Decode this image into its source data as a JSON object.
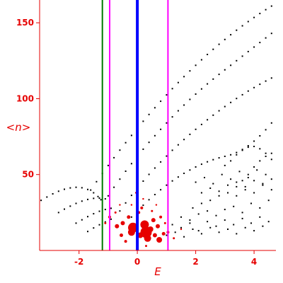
{
  "chart_data": {
    "type": "scatter",
    "xlabel": "E",
    "ylabel": "<n>",
    "xlim": [
      -3.35,
      4.75
    ],
    "ylim": [
      0,
      165
    ],
    "x_ticks": [
      -2,
      0,
      2,
      4
    ],
    "y_ticks": [
      50,
      100,
      150
    ],
    "x_tick_labels": [
      "-2",
      "0",
      "2",
      "4"
    ],
    "y_tick_labels": [
      "50",
      "100",
      "150"
    ],
    "colors": {
      "axes": "#e60000",
      "points": "#000000",
      "highlight": "#e60000",
      "green_line": "#007a00",
      "magenta_line": "#ff00ff",
      "blue_line": "#0000ff"
    },
    "vertical_lines": [
      {
        "x": -1.2,
        "color": "#007a00"
      },
      {
        "x": -0.95,
        "color": "#ff00ff"
      },
      {
        "x": 0.0,
        "color": "#0000ff"
      },
      {
        "x": 1.05,
        "color": "#ff00ff"
      }
    ],
    "series": [
      {
        "values": [
          [
            -3.3,
            33.0
          ],
          [
            -3.1,
            35.2
          ],
          [
            -2.9,
            37.3
          ],
          [
            -2.7,
            39.0
          ],
          [
            -2.5,
            40.3
          ],
          [
            -2.3,
            41.2
          ],
          [
            -2.1,
            41.6
          ],
          [
            -1.9,
            41.3
          ],
          [
            -1.7,
            40.2
          ],
          [
            -1.5,
            38.0
          ],
          [
            -1.35,
            35.5
          ],
          [
            -1.25,
            33.4
          ],
          [
            -2.7,
            25.0
          ],
          [
            -2.5,
            27.2
          ],
          [
            -2.3,
            29.2
          ],
          [
            -2.1,
            31.0
          ],
          [
            -1.9,
            32.5
          ],
          [
            -1.7,
            33.6
          ],
          [
            -1.5,
            34.3
          ],
          [
            -1.3,
            34.5
          ],
          [
            -1.1,
            34.0
          ],
          [
            -2.1,
            18.0
          ],
          [
            -1.9,
            20.2
          ],
          [
            -1.7,
            22.3
          ],
          [
            -1.5,
            24.2
          ],
          [
            -1.3,
            25.8
          ],
          [
            -1.1,
            27.0
          ],
          [
            -0.9,
            27.8
          ],
          [
            -1.7,
            12.5
          ],
          [
            -1.5,
            14.8
          ],
          [
            -1.3,
            16.9
          ],
          [
            -1.1,
            18.8
          ],
          [
            -0.9,
            20.6
          ],
          [
            -1.6,
            39.8
          ],
          [
            -1.4,
            45.3
          ],
          [
            -1.2,
            50.7
          ],
          [
            -1.0,
            56.0
          ],
          [
            -0.8,
            61.1
          ],
          [
            -0.6,
            66.1
          ],
          [
            -0.4,
            71.0
          ],
          [
            -0.2,
            75.8
          ],
          [
            0.0,
            80.5
          ],
          [
            0.2,
            85.1
          ],
          [
            0.4,
            89.6
          ],
          [
            0.6,
            94.0
          ],
          [
            0.8,
            98.3
          ],
          [
            1.0,
            102.5
          ],
          [
            1.2,
            106.6
          ],
          [
            1.4,
            110.6
          ],
          [
            1.6,
            114.5
          ],
          [
            1.8,
            118.3
          ],
          [
            2.0,
            122.0
          ],
          [
            2.2,
            125.6
          ],
          [
            2.4,
            129.1
          ],
          [
            2.6,
            132.5
          ],
          [
            2.8,
            135.8
          ],
          [
            3.0,
            139.0
          ],
          [
            3.2,
            142.1
          ],
          [
            3.4,
            145.1
          ],
          [
            3.6,
            148.0
          ],
          [
            3.8,
            150.8
          ],
          [
            4.0,
            153.5
          ],
          [
            4.2,
            156.1
          ],
          [
            4.4,
            158.6
          ],
          [
            4.6,
            161.0
          ],
          [
            -1.0,
            36.0
          ],
          [
            -0.8,
            41.6
          ],
          [
            -0.6,
            47.0
          ],
          [
            -0.4,
            52.2
          ],
          [
            -0.2,
            57.2
          ],
          [
            0.0,
            62.0
          ],
          [
            0.2,
            66.7
          ],
          [
            0.4,
            71.2
          ],
          [
            0.6,
            75.6
          ],
          [
            0.8,
            79.8
          ],
          [
            1.0,
            84.0
          ],
          [
            1.2,
            88.0
          ],
          [
            1.4,
            92.0
          ],
          [
            1.6,
            95.8
          ],
          [
            1.8,
            99.5
          ],
          [
            2.0,
            103.0
          ],
          [
            2.2,
            106.4
          ],
          [
            2.4,
            109.7
          ],
          [
            2.6,
            112.9
          ],
          [
            2.8,
            116.0
          ],
          [
            3.0,
            119.0
          ],
          [
            3.2,
            122.0
          ],
          [
            3.4,
            125.0
          ],
          [
            3.6,
            128.0
          ],
          [
            3.8,
            131.0
          ],
          [
            4.0,
            134.0
          ],
          [
            4.2,
            137.0
          ],
          [
            4.4,
            140.0
          ],
          [
            4.6,
            143.0
          ],
          [
            -0.6,
            26.0
          ],
          [
            -0.4,
            31.3
          ],
          [
            -0.2,
            36.3
          ],
          [
            0.0,
            41.1
          ],
          [
            0.2,
            45.7
          ],
          [
            0.4,
            50.1
          ],
          [
            0.6,
            54.3
          ],
          [
            0.8,
            58.3
          ],
          [
            1.0,
            62.2
          ],
          [
            1.2,
            66.0
          ],
          [
            1.4,
            69.6
          ],
          [
            1.6,
            73.1
          ],
          [
            1.8,
            76.5
          ],
          [
            2.0,
            79.8
          ],
          [
            2.2,
            83.0
          ],
          [
            2.4,
            86.1
          ],
          [
            2.6,
            89.1
          ],
          [
            2.8,
            92.0
          ],
          [
            3.0,
            94.8
          ],
          [
            3.2,
            97.5
          ],
          [
            3.4,
            100.1
          ],
          [
            3.6,
            102.6
          ],
          [
            3.8,
            105.0
          ],
          [
            4.0,
            107.3
          ],
          [
            4.2,
            109.5
          ],
          [
            4.4,
            111.6
          ],
          [
            4.6,
            113.6
          ],
          [
            -0.2,
            22.0
          ],
          [
            0.0,
            26.0
          ],
          [
            0.2,
            29.8
          ],
          [
            0.4,
            33.4
          ],
          [
            0.6,
            36.8
          ],
          [
            0.8,
            40.0
          ],
          [
            1.0,
            43.0
          ],
          [
            1.2,
            45.8
          ],
          [
            1.4,
            48.4
          ],
          [
            1.6,
            50.8
          ],
          [
            1.8,
            53.0
          ],
          [
            2.0,
            55.0
          ],
          [
            2.2,
            56.8
          ],
          [
            2.4,
            58.4
          ],
          [
            2.6,
            59.8
          ],
          [
            2.8,
            61.0
          ],
          [
            3.0,
            62.0
          ],
          [
            3.2,
            63.0
          ],
          [
            3.4,
            64.5
          ],
          [
            3.6,
            66.5
          ],
          [
            3.8,
            69.0
          ],
          [
            4.0,
            72.0
          ],
          [
            4.2,
            75.5
          ],
          [
            4.4,
            79.5
          ],
          [
            4.6,
            84.0
          ],
          [
            3.0,
            56.0
          ],
          [
            3.2,
            59.0
          ],
          [
            3.4,
            63.0
          ],
          [
            3.6,
            66.0
          ],
          [
            3.8,
            68.0
          ],
          [
            4.0,
            68.5
          ],
          [
            4.2,
            67.0
          ],
          [
            4.4,
            64.0
          ],
          [
            4.6,
            60.0
          ],
          [
            3.4,
            42.0
          ],
          [
            3.6,
            46.0
          ],
          [
            3.8,
            50.0
          ],
          [
            4.0,
            55.0
          ],
          [
            4.2,
            59.0
          ],
          [
            4.4,
            62.0
          ],
          [
            4.6,
            64.0
          ],
          [
            1.9,
            28.0
          ],
          [
            2.2,
            31.0
          ],
          [
            2.5,
            33.0
          ],
          [
            2.8,
            36.0
          ],
          [
            3.1,
            38.0
          ],
          [
            3.4,
            36.0
          ],
          [
            3.7,
            40.0
          ],
          [
            4.0,
            38.0
          ],
          [
            4.3,
            43.0
          ],
          [
            4.6,
            40.0
          ],
          [
            1.5,
            22.0
          ],
          [
            1.8,
            20.0
          ],
          [
            2.1,
            24.0
          ],
          [
            2.4,
            26.0
          ],
          [
            2.7,
            23.0
          ],
          [
            3.0,
            27.0
          ],
          [
            3.3,
            29.0
          ],
          [
            3.6,
            25.0
          ],
          [
            3.9,
            31.0
          ],
          [
            4.2,
            28.0
          ],
          [
            4.5,
            33.0
          ],
          [
            1.2,
            17.0
          ],
          [
            1.5,
            15.0
          ],
          [
            1.8,
            18.0
          ],
          [
            2.1,
            13.0
          ],
          [
            2.4,
            19.0
          ],
          [
            2.7,
            16.0
          ],
          [
            3.0,
            20.0
          ],
          [
            3.3,
            17.0
          ],
          [
            3.6,
            21.0
          ],
          [
            3.9,
            18.0
          ],
          [
            4.2,
            22.0
          ],
          [
            4.5,
            19.0
          ],
          [
            1.0,
            10.0
          ],
          [
            1.3,
            12.0
          ],
          [
            1.6,
            9.0
          ],
          [
            1.9,
            14.0
          ],
          [
            2.2,
            11.0
          ],
          [
            2.5,
            15.0
          ],
          [
            2.8,
            12.0
          ],
          [
            3.1,
            14.0
          ],
          [
            3.4,
            11.0
          ],
          [
            3.7,
            15.0
          ],
          [
            4.0,
            13.0
          ],
          [
            4.3,
            16.0
          ],
          [
            2.0,
            45.0
          ],
          [
            2.3,
            48.0
          ],
          [
            2.6,
            44.0
          ],
          [
            2.9,
            50.0
          ],
          [
            3.2,
            47.0
          ],
          [
            3.5,
            52.0
          ],
          [
            3.8,
            48.0
          ],
          [
            4.1,
            53.0
          ],
          [
            4.4,
            50.0
          ],
          [
            2.2,
            38.0
          ],
          [
            2.5,
            41.0
          ],
          [
            2.8,
            39.0
          ],
          [
            3.1,
            43.0
          ],
          [
            3.4,
            45.0
          ],
          [
            3.7,
            42.0
          ],
          [
            4.0,
            46.0
          ],
          [
            4.3,
            44.0
          ],
          [
            4.6,
            47.0
          ]
        ]
      },
      {
        "values": [
          [
            -0.15,
            15.0,
            7
          ],
          [
            0.3,
            12.0,
            8
          ],
          [
            0.25,
            17.0,
            6
          ],
          [
            0.35,
            8.0,
            5
          ],
          [
            -0.2,
            12.0,
            5
          ],
          [
            0.1,
            10.0,
            4
          ],
          [
            0.45,
            14.0,
            4
          ],
          [
            0.75,
            7.0,
            4
          ],
          [
            0.6,
            10.0,
            3
          ],
          [
            -0.5,
            18.0,
            3
          ],
          [
            -0.7,
            16.0,
            3
          ],
          [
            0.7,
            16.0,
            3
          ],
          [
            0.55,
            20.0,
            3
          ],
          [
            -0.3,
            22.0,
            2.5
          ],
          [
            0.9,
            11.0,
            2.5
          ],
          [
            -0.55,
            10.0,
            2.5
          ],
          [
            0.05,
            25.0,
            2
          ],
          [
            -0.95,
            22.0,
            2
          ],
          [
            1.05,
            12.0,
            2
          ],
          [
            0.15,
            28.0,
            2
          ],
          [
            -0.4,
            6.0,
            2
          ],
          [
            0.3,
            3.0,
            1.5
          ],
          [
            0.8,
            22.0,
            2
          ],
          [
            -0.75,
            25.0,
            1.5
          ],
          [
            0.95,
            18.0,
            1.5
          ],
          [
            -1.1,
            18.0,
            1.5
          ],
          [
            0.5,
            26.0,
            1.5
          ],
          [
            -0.2,
            30.0,
            1.2
          ],
          [
            0.65,
            30.0,
            1.2
          ],
          [
            -0.6,
            30.0,
            1.2
          ],
          [
            0.2,
            34.0,
            1.2
          ],
          [
            -0.05,
            38.0,
            1.2
          ],
          [
            1.25,
            8.0,
            1.5
          ],
          [
            1.5,
            14.0,
            1.2
          ]
        ]
      }
    ]
  }
}
